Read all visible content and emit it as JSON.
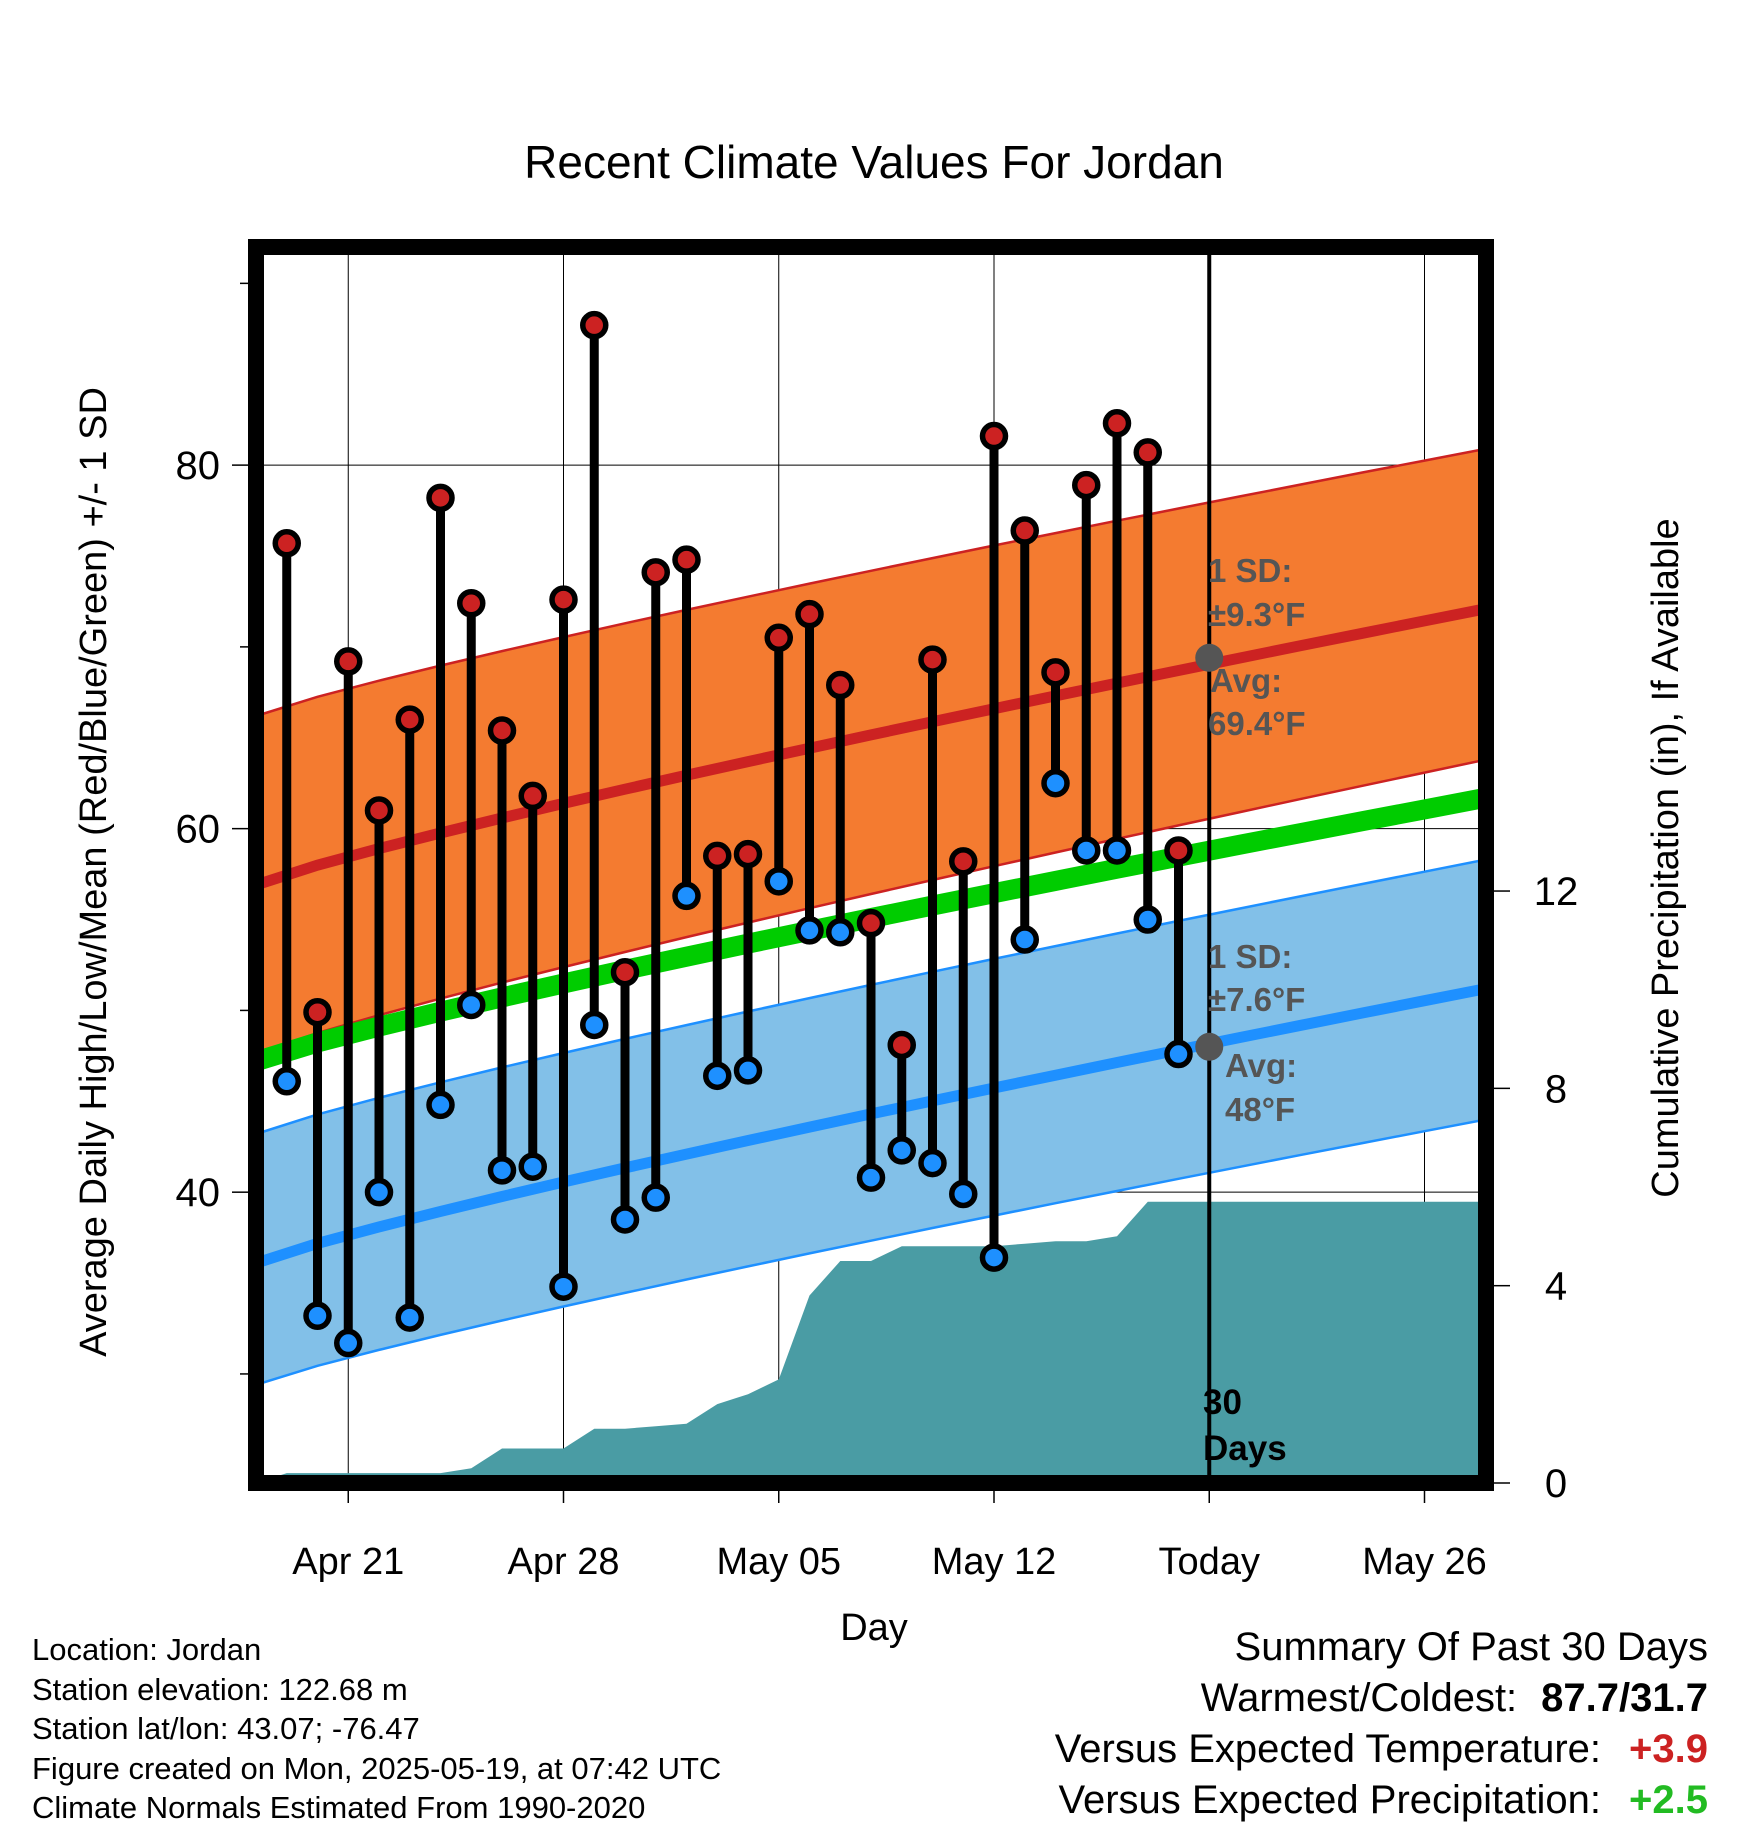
{
  "chart_data": {
    "type": "line",
    "title": "Recent Climate Values For Jordan",
    "xlabel": "Day",
    "ylabel": "Average Daily High/Low/Mean (Red/Blue/Green) +/- 1 SD",
    "y2label": "Cumulative Precipitation (in), If Available",
    "x_tick_labels": [
      "Apr 21",
      "Apr 28",
      "May 05",
      "May 12",
      "Today",
      "May 26"
    ],
    "x_tick_dates": [
      "2025-04-21",
      "2025-04-28",
      "2025-05-05",
      "2025-05-12",
      "2025-05-19",
      "2025-05-26"
    ],
    "xlim": [
      "2025-04-18",
      "2025-05-28"
    ],
    "today": "2025-05-19",
    "ylim": [
      24,
      92
    ],
    "y_ticks": [
      40,
      60,
      80
    ],
    "y2lim": [
      0,
      16
    ],
    "y2_ticks": [
      0,
      4,
      8,
      12
    ],
    "grid": true,
    "observations": {
      "dates": [
        "2025-04-19",
        "2025-04-20",
        "2025-04-21",
        "2025-04-22",
        "2025-04-23",
        "2025-04-24",
        "2025-04-25",
        "2025-04-26",
        "2025-04-27",
        "2025-04-28",
        "2025-04-29",
        "2025-04-30",
        "2025-05-01",
        "2025-05-02",
        "2025-05-03",
        "2025-05-04",
        "2025-05-05",
        "2025-05-06",
        "2025-05-07",
        "2025-05-08",
        "2025-05-09",
        "2025-05-10",
        "2025-05-11",
        "2025-05-12",
        "2025-05-13",
        "2025-05-14",
        "2025-05-15",
        "2025-05-16",
        "2025-05-17",
        "2025-05-18"
      ],
      "high": [
        75.7,
        49.9,
        69.2,
        61.0,
        66.0,
        78.2,
        72.4,
        65.4,
        61.8,
        72.6,
        87.7,
        52.1,
        74.1,
        74.8,
        58.5,
        58.6,
        70.5,
        71.8,
        67.9,
        54.8,
        48.1,
        69.3,
        58.2,
        81.6,
        76.4,
        68.6,
        78.9,
        82.3,
        80.7,
        58.8
      ],
      "low": [
        46.1,
        33.2,
        31.7,
        40.0,
        33.1,
        44.8,
        50.3,
        41.2,
        41.4,
        34.8,
        49.2,
        38.5,
        39.7,
        56.3,
        46.4,
        46.7,
        57.1,
        54.4,
        54.3,
        40.8,
        42.3,
        41.6,
        39.9,
        36.4,
        53.9,
        62.5,
        58.8,
        58.8,
        55.0,
        47.6
      ]
    },
    "normals": {
      "high_avg": [
        56.9,
        72.1
      ],
      "high_sd_band": [
        [
          47.6,
          66.2
        ],
        [
          63.8,
          80.9
        ]
      ],
      "mean_avg": [
        47.2,
        61.7
      ],
      "low_avg": [
        36.1,
        51.2
      ],
      "low_sd_band": [
        [
          29.4,
          43.2
        ],
        [
          44.0,
          58.3
        ]
      ]
    },
    "precipitation_cumulative": {
      "dates": [
        "2025-04-18",
        "2025-04-19",
        "2025-04-22",
        "2025-04-23",
        "2025-04-24",
        "2025-04-25",
        "2025-04-26",
        "2025-04-27",
        "2025-04-28",
        "2025-04-29",
        "2025-04-30",
        "2025-05-01",
        "2025-05-02",
        "2025-05-03",
        "2025-05-04",
        "2025-05-05",
        "2025-05-06",
        "2025-05-07",
        "2025-05-08",
        "2025-05-09",
        "2025-05-10",
        "2025-05-11",
        "2025-05-12",
        "2025-05-13",
        "2025-05-14",
        "2025-05-15",
        "2025-05-16",
        "2025-05-17",
        "2025-05-18",
        "2025-05-28"
      ],
      "values": [
        0.0,
        0.2,
        0.2,
        0.2,
        0.2,
        0.3,
        0.7,
        0.7,
        0.7,
        1.1,
        1.1,
        1.15,
        1.2,
        1.6,
        1.8,
        2.1,
        3.8,
        4.5,
        4.5,
        4.8,
        4.8,
        4.8,
        4.8,
        4.85,
        4.9,
        4.9,
        5.0,
        5.7,
        5.7,
        5.7
      ]
    },
    "annotations": {
      "high_sd_label": "1 SD:",
      "high_sd_value": "±9.3°F",
      "high_avg_label": "Avg:",
      "high_avg_value": "69.4°F",
      "low_sd_label": "1 SD:",
      "low_sd_value": "±7.6°F",
      "low_avg_label": "Avg:",
      "low_avg_value": "48°F",
      "period_number": "30",
      "period_unit": "Days"
    },
    "colors": {
      "high": "#cc2222",
      "high_band": "#f47b30",
      "low": "#1e90ff",
      "low_band": "#82c0e8",
      "mean": "#00cc00",
      "precip": "#4a9ca4"
    }
  },
  "info": {
    "location": "Location: Jordan",
    "elevation": "Station elevation: 122.68 m",
    "latlon": "Station lat/lon: 43.07; -76.47",
    "created": "Figure created on Mon, 2025-05-19, at 07:42 UTC",
    "normals": "Climate Normals Estimated From 1990-2020"
  },
  "summary": {
    "title": "Summary Of Past 30 Days",
    "warm_cold_label": "Warmest/Coldest:",
    "warm_cold_value": "87.7/31.7",
    "temp_label": "Versus Expected Temperature:",
    "temp_value": "+3.9",
    "temp_color": "#cc2222",
    "precip_label": "Versus Expected Precipitation:",
    "precip_value": "+2.5",
    "precip_color": "#22bb22"
  }
}
